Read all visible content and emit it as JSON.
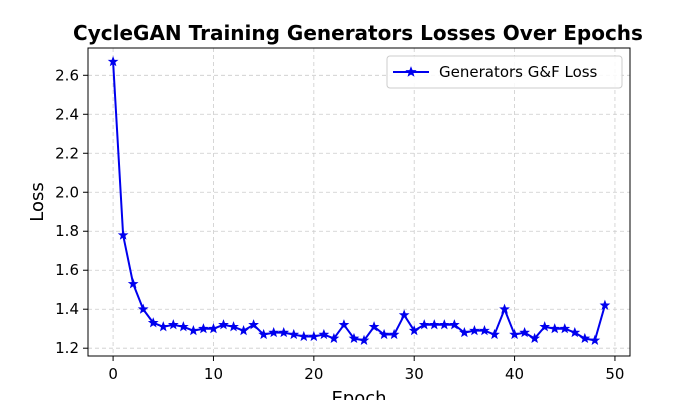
{
  "chart_data": {
    "type": "line",
    "title": "CycleGAN Training Generators Losses Over Epochs",
    "xlabel": "Epoch",
    "ylabel": "Loss",
    "xlim": [
      -2.5,
      51.5
    ],
    "ylim": [
      1.16,
      2.74
    ],
    "xticks": [
      0,
      10,
      20,
      30,
      40,
      50
    ],
    "yticks": [
      1.2,
      1.4,
      1.6,
      1.8,
      2.0,
      2.2,
      2.4,
      2.6
    ],
    "ytick_labels": [
      "1.2",
      "1.4",
      "1.6",
      "1.8",
      "2.0",
      "2.2",
      "2.4",
      "2.6"
    ],
    "grid": true,
    "legend_position": "top-right",
    "color": "#0000ee",
    "marker": "star",
    "series": [
      {
        "name": "Generators G&F Loss",
        "x": [
          0,
          1,
          2,
          3,
          4,
          5,
          6,
          7,
          8,
          9,
          10,
          11,
          12,
          13,
          14,
          15,
          16,
          17,
          18,
          19,
          20,
          21,
          22,
          23,
          24,
          25,
          26,
          27,
          28,
          29,
          30,
          31,
          32,
          33,
          34,
          35,
          36,
          37,
          38,
          39,
          40,
          41,
          42,
          43,
          44,
          45,
          46,
          47,
          48,
          49
        ],
        "values": [
          2.67,
          1.78,
          1.53,
          1.4,
          1.33,
          1.31,
          1.32,
          1.31,
          1.29,
          1.3,
          1.3,
          1.32,
          1.31,
          1.29,
          1.32,
          1.27,
          1.28,
          1.28,
          1.27,
          1.26,
          1.26,
          1.27,
          1.25,
          1.32,
          1.25,
          1.24,
          1.31,
          1.27,
          1.27,
          1.37,
          1.29,
          1.32,
          1.32,
          1.32,
          1.32,
          1.28,
          1.29,
          1.29,
          1.27,
          1.4,
          1.27,
          1.28,
          1.25,
          1.31,
          1.3,
          1.3,
          1.28,
          1.25,
          1.24,
          1.42
        ]
      }
    ]
  }
}
